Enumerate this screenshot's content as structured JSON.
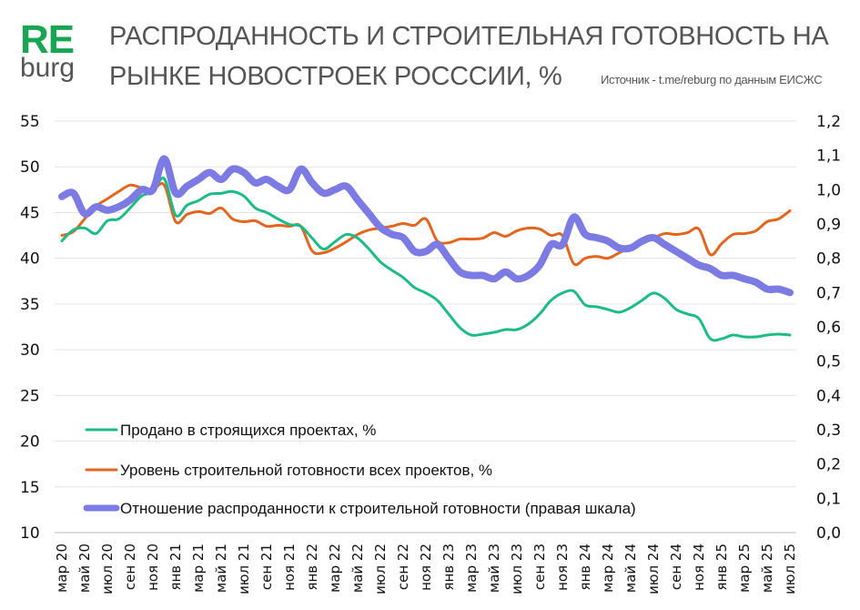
{
  "logo": {
    "top": "RE",
    "bottom": "burg",
    "color": "#1aa553"
  },
  "title_line1": "РАСПРОДАННОСТЬ И СТРОИТЕЛЬНАЯ ГОТОВНОСТЬ НА",
  "title_line2": "РЫНКЕ НОВОСТРОЕК РОСССИИ, %",
  "source": "Источник - t.me/reburg по данным ЕИСЖС",
  "chart_data": {
    "type": "line",
    "title": "РАСПРОДАННОСТЬ И СТРОИТЕЛЬНАЯ ГОТОВНОСТЬ НА РЫНКЕ НОВОСТРОЕК РОСССИИ, %",
    "x_frequency": "monthly",
    "x_range": [
      "мар 20",
      "июл 25"
    ],
    "x_tick_labels": [
      "мар 20",
      "май 20",
      "июл 20",
      "сен 20",
      "ноя 20",
      "янв 21",
      "мар 21",
      "май 21",
      "июл 21",
      "сен 21",
      "ноя 21",
      "янв 22",
      "мар 22",
      "май 22",
      "июл 22",
      "сен 22",
      "ноя 22",
      "янв 23",
      "мар 23",
      "май 23",
      "июл 23",
      "сен 23",
      "ноя 23",
      "янв 24",
      "мар 24",
      "май 24",
      "июл 24",
      "сен 24",
      "ноя 24",
      "янв 25",
      "мар 25",
      "май 25",
      "июл 25"
    ],
    "y_left": {
      "range": [
        10,
        55
      ],
      "ticks": [
        "10",
        "15",
        "20",
        "25",
        "30",
        "35",
        "40",
        "45",
        "50",
        "55"
      ]
    },
    "y_right": {
      "range": [
        0,
        1.2
      ],
      "ticks": [
        "0,0",
        "0,1",
        "0,2",
        "0,3",
        "0,4",
        "0,5",
        "0,6",
        "0,7",
        "0,8",
        "0,9",
        "1,0",
        "1,1",
        "1,2"
      ]
    },
    "grid": "horizontal",
    "legend_placement": "bottom-left",
    "series": [
      {
        "name": "Продано в строящихся проектах, %",
        "axis": "left",
        "color": "#1dbb88",
        "values": [
          41.9,
          43.1,
          43.3,
          42.7,
          44.1,
          44.3,
          45.5,
          46.8,
          47.3,
          48.7,
          44.7,
          45.8,
          46.3,
          47.0,
          47.1,
          47.3,
          46.8,
          45.5,
          45.0,
          44.3,
          43.7,
          43.5,
          42.2,
          41.0,
          41.8,
          42.6,
          42.2,
          41.0,
          39.6,
          38.7,
          37.9,
          36.8,
          36.2,
          35.4,
          33.9,
          32.4,
          31.6,
          31.7,
          31.9,
          32.2,
          32.2,
          32.8,
          33.9,
          35.4,
          36.2,
          36.4,
          34.9,
          34.7,
          34.4,
          34.1,
          34.6,
          35.4,
          36.2,
          35.6,
          34.4,
          33.9,
          33.4,
          31.2,
          31.2,
          31.6,
          31.4,
          31.4,
          31.6,
          31.7,
          31.6
        ]
      },
      {
        "name": "Уровень строительной готовности всех проектов, %",
        "axis": "left",
        "color": "#e2661e",
        "values": [
          42.5,
          42.9,
          44.3,
          45.7,
          46.5,
          47.3,
          48.0,
          47.7,
          47.5,
          48.0,
          44.0,
          44.8,
          45.1,
          44.9,
          45.5,
          44.3,
          44.0,
          44.1,
          43.5,
          43.6,
          43.5,
          43.5,
          40.8,
          40.6,
          41.1,
          41.8,
          42.6,
          43.1,
          43.3,
          43.5,
          43.8,
          43.6,
          44.3,
          41.9,
          41.7,
          42.1,
          42.1,
          42.2,
          42.8,
          42.4,
          43.0,
          43.3,
          43.2,
          42.5,
          42.5,
          39.4,
          40.0,
          40.2,
          40.0,
          40.6,
          41.2,
          41.6,
          42.2,
          42.7,
          42.6,
          42.8,
          43.2,
          40.4,
          41.6,
          42.6,
          42.7,
          43.0,
          44.0,
          44.3,
          45.2
        ]
      },
      {
        "name": "Отношение распроданности к строительной готовности (правая шкала)",
        "axis": "right",
        "color": "#7b7be3",
        "values": [
          0.98,
          0.99,
          0.93,
          0.95,
          0.94,
          0.95,
          0.97,
          1.0,
          1.0,
          1.09,
          0.99,
          1.01,
          1.03,
          1.05,
          1.03,
          1.06,
          1.05,
          1.02,
          1.03,
          1.01,
          1.0,
          1.06,
          1.02,
          0.99,
          1.0,
          1.01,
          0.97,
          0.93,
          0.89,
          0.87,
          0.86,
          0.82,
          0.82,
          0.84,
          0.8,
          0.76,
          0.75,
          0.75,
          0.74,
          0.76,
          0.74,
          0.75,
          0.78,
          0.84,
          0.84,
          0.92,
          0.87,
          0.86,
          0.85,
          0.83,
          0.83,
          0.85,
          0.86,
          0.84,
          0.82,
          0.8,
          0.78,
          0.77,
          0.75,
          0.75,
          0.74,
          0.73,
          0.71,
          0.71,
          0.7
        ]
      }
    ]
  }
}
